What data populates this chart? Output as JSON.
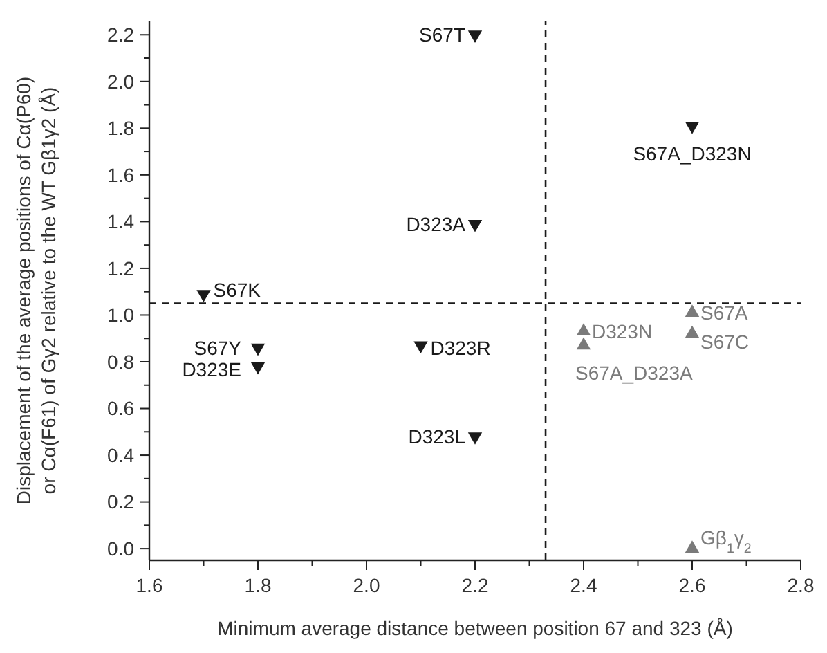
{
  "chart_data": {
    "type": "scatter",
    "xlabel": "Minimum average distance between position 67 and 323 (Å)",
    "ylabel": "Displacement of the average positions of Cα(P60)\nor Cα(F61) of Gγ2 relative to the WT Gβ1γ2 (Å)",
    "marker": "triangle",
    "xlim": [
      1.6,
      2.8
    ],
    "ylim": [
      -0.05,
      2.26
    ],
    "xticks": [
      1.6,
      {
        "value": 1.7,
        "label": null
      },
      1.8,
      {
        "value": 1.9,
        "label": null
      },
      "2.0",
      {
        "value": 2.1,
        "label": null
      },
      2.2,
      {
        "value": 2.3,
        "label": null
      },
      2.4,
      {
        "value": 2.5,
        "label": null
      },
      2.6,
      {
        "value": 2.7,
        "label": null
      },
      2.8
    ],
    "yticks": [
      {
        "value": 0,
        "label": "0.0"
      },
      {
        "value": 0.1,
        "label": null
      },
      0.2,
      {
        "value": 0.3,
        "label": null
      },
      0.4,
      {
        "value": 0.5,
        "label": null
      },
      0.6,
      {
        "value": 0.7,
        "label": null
      },
      0.8,
      {
        "value": 0.9,
        "label": null
      },
      {
        "value": 1,
        "label": "1.0"
      },
      {
        "value": 1.1,
        "label": null
      },
      1.2,
      {
        "value": 1.3,
        "label": null
      },
      1.4,
      {
        "value": 1.5,
        "label": null
      },
      1.6,
      {
        "value": 1.7,
        "label": null
      },
      1.8,
      {
        "value": 1.9,
        "label": null
      },
      {
        "value": 2,
        "label": "2.0"
      },
      {
        "value": 2.1,
        "label": null
      },
      2.2
    ],
    "series": [
      {
        "color": "#1a1a1a",
        "x": [
          2.2,
          2.6,
          2.2,
          1.7,
          1.8,
          1.8,
          2.1,
          2.2
        ],
        "values": [
          2.2,
          1.81,
          1.39,
          1.09,
          0.86,
          0.78,
          0.87,
          0.48
        ]
      },
      {
        "color": "#7a7a7a",
        "x": [
          2.4,
          2.4,
          2.6,
          2.6,
          2.6
        ],
        "values": [
          0.93,
          0.87,
          1.01,
          0.92,
          0
        ]
      }
    ],
    "ref_lines": [
      {
        "axis": "x",
        "value": 2.33,
        "line_style": "dashed",
        "color": "#1a1a1a"
      },
      {
        "axis": "y",
        "value": 1.05,
        "line_style": "dashed",
        "color": "#1a1a1a"
      }
    ],
    "annotations": [
      {
        "text": "S67T",
        "x": 2.2,
        "y": 2.2
      },
      {
        "text": "S67A_D323N",
        "x": 2.6,
        "y": 1.81
      },
      {
        "text": "D323A",
        "x": 2.2,
        "y": 1.39
      },
      {
        "text": "S67K",
        "x": 1.7,
        "y": 1.09
      },
      {
        "text": "S67Y",
        "x": 1.8,
        "y": 0.86
      },
      {
        "text": "D323E",
        "x": 1.8,
        "y": 0.78
      },
      {
        "text": "D323R",
        "x": 2.1,
        "y": 0.87
      },
      {
        "text": "D323L",
        "x": 2.2,
        "y": 0.48
      },
      {
        "text": "D323N",
        "x": 2.4,
        "y": 0.93
      },
      {
        "text": "S67A_D323A",
        "x": 2.4,
        "y": 0.87
      },
      {
        "text": "S67A",
        "x": 2.6,
        "y": 1.01
      },
      {
        "text": "S67C",
        "x": 2.6,
        "y": 0.92
      },
      {
        "text": "Gβ$_{1}$γ$_{2}$",
        "x": 2.6,
        "y": 0
      }
    ]
  }
}
